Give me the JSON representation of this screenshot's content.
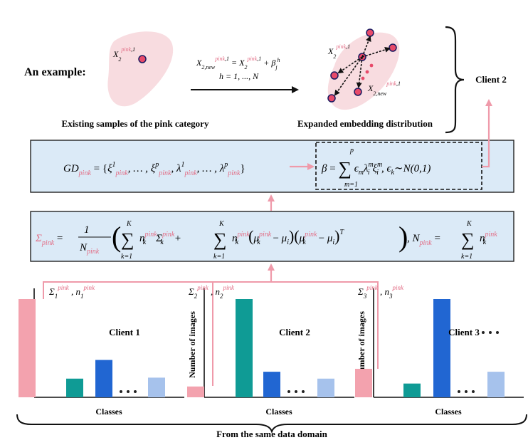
{
  "example_label": "An example:",
  "existing_caption": "Existing samples of the pink category",
  "expanded_caption": "Expanded embedding distribution",
  "client2_top": "Client 2",
  "formula_aug_line1": "X",
  "formula_aug_line2": "h = 1, ..., N",
  "gd_formula_label": "GD",
  "beta_formula_label": "β",
  "sigma_formula_label": "Σ",
  "ylabel": "Number of images",
  "xlabel": "Classes",
  "bottom_caption": "From the same data domain",
  "clients": [
    {
      "name": "Client 1",
      "stat_label": "Σ",
      "n_sub": "1",
      "bars": [
        1.0,
        0.19,
        0.38,
        0.2
      ]
    },
    {
      "name": "Client 2",
      "stat_label": "Σ",
      "n_sub": "2",
      "bars": [
        0.11,
        1.0,
        0.26,
        0.19
      ]
    },
    {
      "name": "Client 3",
      "stat_label": "Σ",
      "n_sub": "3",
      "bars": [
        0.29,
        0.14,
        1.0,
        0.26
      ]
    }
  ],
  "colors": {
    "pink": "#f3a2ae",
    "teal": "#0f9b95",
    "blue": "#2166d2",
    "light_blue": "#a6c2ec",
    "arrow_pink": "#ef9aaa",
    "box_fill": "#dbeaf7"
  }
}
